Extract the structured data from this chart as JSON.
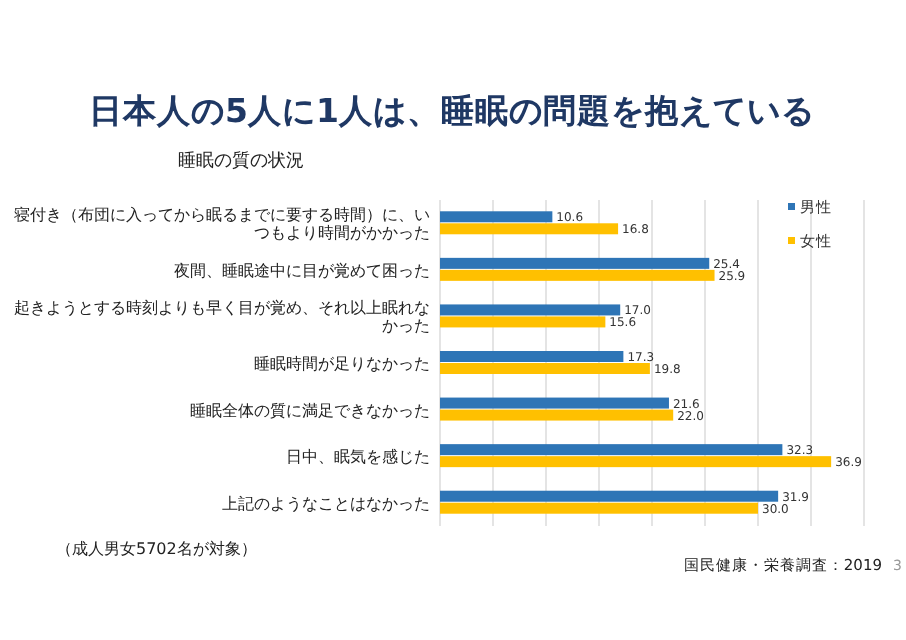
{
  "chart_data": {
    "type": "bar",
    "orientation": "horizontal",
    "title": "日本人の5人に1人は、睡眠の問題を抱えている",
    "subtitle": "睡眠の質の状況",
    "categories": [
      "寝付き（布団に入ってから眠るまでに要する時間）に、いつもより時間がかかった",
      "夜間、睡眠途中に目が覚めて困った",
      "起きようとする時刻よりも早く目が覚め、それ以上眠れなかった",
      "睡眠時間が足りなかった",
      "睡眠全体の質に満足できなかった",
      "日中、眠気を感じた",
      "上記のようなことはなかった"
    ],
    "series": [
      {
        "name": "男性",
        "color": "#2e75b6",
        "values": [
          10.6,
          25.4,
          17.0,
          17.3,
          21.6,
          32.3,
          31.9
        ],
        "value_labels": [
          "10.6",
          "25.4",
          "17.0",
          "17.3",
          "21.6",
          "32.3",
          "31.9"
        ]
      },
      {
        "name": "女性",
        "color": "#ffc000",
        "values": [
          16.8,
          25.9,
          15.6,
          19.8,
          22.0,
          36.9,
          30.0
        ],
        "value_labels": [
          "16.8",
          "25.9",
          "15.6",
          "19.8",
          "22.0",
          "36.9",
          "30.0"
        ]
      }
    ],
    "xlim": [
      0,
      40
    ],
    "xticks": [
      {
        "value": 0,
        "label": null
      },
      {
        "value": 5,
        "label": null
      },
      {
        "value": 10,
        "label": null
      },
      {
        "value": 15,
        "label": null
      },
      {
        "value": 20,
        "label": null
      },
      {
        "value": 25,
        "label": null
      },
      {
        "value": 30,
        "label": null
      },
      {
        "value": 35,
        "label": null
      },
      {
        "value": 40,
        "label": null
      }
    ],
    "grid": "x",
    "legend": "top right",
    "annotations": [
      "（成人男女5702名が対象）",
      "国民健康・栄養調査：2019",
      "3"
    ]
  }
}
